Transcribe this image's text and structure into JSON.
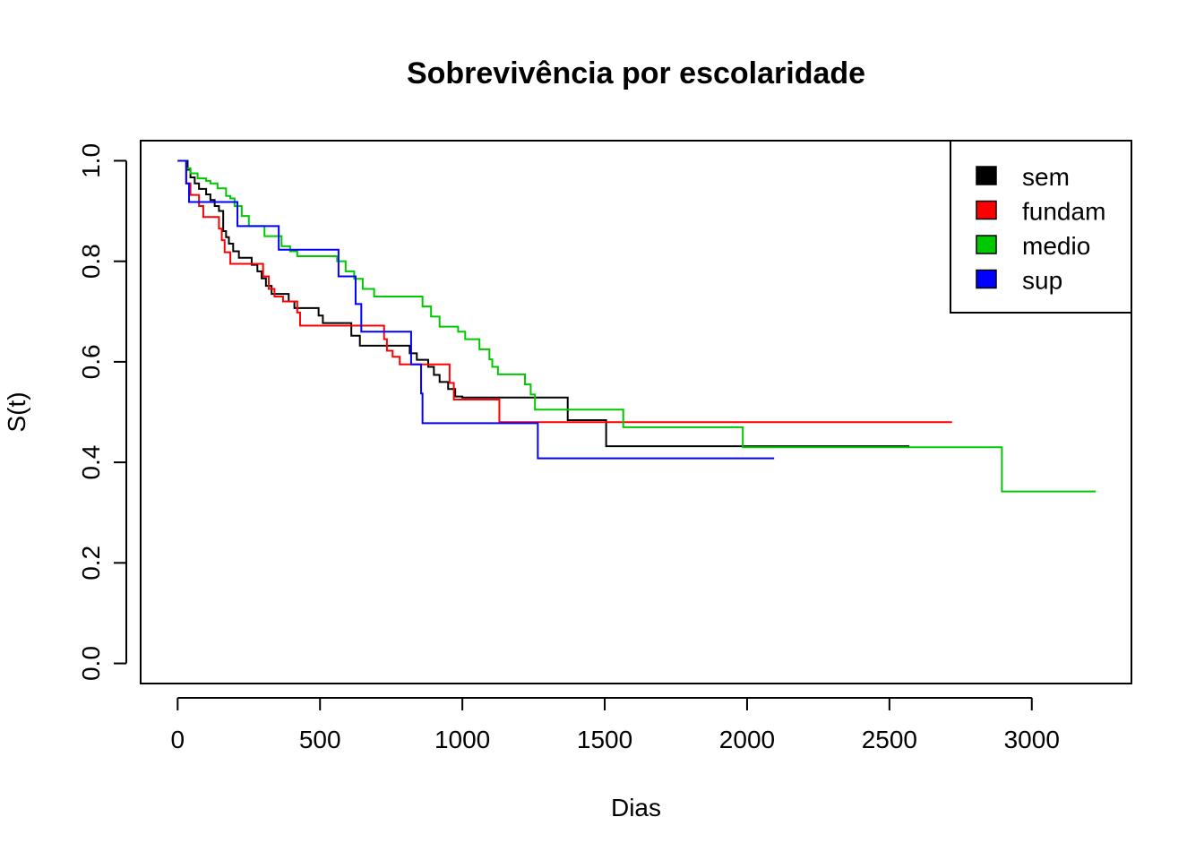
{
  "chart_data": {
    "type": "line",
    "step": true,
    "title": "Sobrevivência por escolaridade",
    "xlabel": "Dias",
    "ylabel": "S(t)",
    "xlim": [
      -130,
      3350
    ],
    "ylim": [
      -0.04,
      1.04
    ],
    "xticks": [
      0,
      500,
      1000,
      1500,
      2000,
      2500,
      3000
    ],
    "xtick_labels": [
      "0",
      "500",
      "1000",
      "1500",
      "2000",
      "2500",
      "3000"
    ],
    "yticks": [
      0.0,
      0.2,
      0.4,
      0.6,
      0.8,
      1.0
    ],
    "ytick_labels": [
      "0.0",
      "0.2",
      "0.4",
      "0.6",
      "0.8",
      "1.0"
    ],
    "legend_position": "top-right",
    "series": [
      {
        "name": "sem",
        "color": "#000000",
        "x": [
          0,
          25,
          35,
          45,
          60,
          75,
          100,
          115,
          130,
          145,
          160,
          170,
          180,
          195,
          215,
          260,
          280,
          295,
          310,
          330,
          390,
          410,
          495,
          510,
          610,
          640,
          720,
          775,
          815,
          840,
          880,
          900,
          920,
          950,
          975,
          1000,
          1370,
          1505,
          2570
        ],
        "y": [
          1.0,
          1.0,
          0.982,
          0.967,
          0.955,
          0.944,
          0.933,
          0.922,
          0.91,
          0.9,
          0.86,
          0.848,
          0.835,
          0.82,
          0.807,
          0.793,
          0.78,
          0.766,
          0.751,
          0.735,
          0.72,
          0.707,
          0.692,
          0.677,
          0.652,
          0.632,
          0.632,
          0.632,
          0.617,
          0.604,
          0.59,
          0.574,
          0.56,
          0.546,
          0.531,
          0.529,
          0.484,
          0.432,
          0.432
        ]
      },
      {
        "name": "fundam",
        "color": "#ff0000",
        "x": [
          0,
          20,
          30,
          45,
          75,
          90,
          145,
          155,
          165,
          185,
          270,
          300,
          320,
          340,
          370,
          420,
          430,
          720,
          725,
          735,
          755,
          780,
          900,
          955,
          970,
          1115,
          1130,
          2720
        ],
        "y": [
          1.0,
          1.0,
          0.955,
          0.932,
          0.91,
          0.888,
          0.865,
          0.842,
          0.818,
          0.795,
          0.795,
          0.77,
          0.745,
          0.73,
          0.72,
          0.698,
          0.672,
          0.672,
          0.645,
          0.622,
          0.61,
          0.595,
          0.595,
          0.558,
          0.525,
          0.525,
          0.48,
          0.48
        ]
      },
      {
        "name": "medio",
        "color": "#00c800",
        "x": [
          0,
          20,
          30,
          45,
          70,
          100,
          115,
          140,
          170,
          185,
          200,
          225,
          250,
          305,
          365,
          395,
          420,
          505,
          560,
          590,
          620,
          650,
          690,
          760,
          860,
          890,
          920,
          985,
          1010,
          1060,
          1095,
          1105,
          1125,
          1220,
          1240,
          1255,
          1565,
          1985,
          2895,
          3225
        ],
        "y": [
          1.0,
          1.0,
          0.985,
          0.975,
          0.965,
          0.96,
          0.955,
          0.945,
          0.93,
          0.925,
          0.91,
          0.89,
          0.87,
          0.85,
          0.83,
          0.82,
          0.81,
          0.81,
          0.8,
          0.78,
          0.765,
          0.745,
          0.73,
          0.73,
          0.71,
          0.69,
          0.67,
          0.66,
          0.645,
          0.625,
          0.605,
          0.59,
          0.575,
          0.555,
          0.535,
          0.505,
          0.47,
          0.43,
          0.342,
          0.342
        ]
      },
      {
        "name": "sup",
        "color": "#0000ff",
        "x": [
          0,
          15,
          30,
          40,
          155,
          195,
          210,
          325,
          355,
          550,
          565,
          625,
          645,
          795,
          820,
          855,
          860,
          1260,
          1265,
          2095
        ],
        "y": [
          1.0,
          1.0,
          0.955,
          0.918,
          0.918,
          0.918,
          0.87,
          0.87,
          0.823,
          0.823,
          0.77,
          0.715,
          0.66,
          0.66,
          0.595,
          0.537,
          0.478,
          0.478,
          0.408,
          0.408
        ]
      }
    ]
  }
}
